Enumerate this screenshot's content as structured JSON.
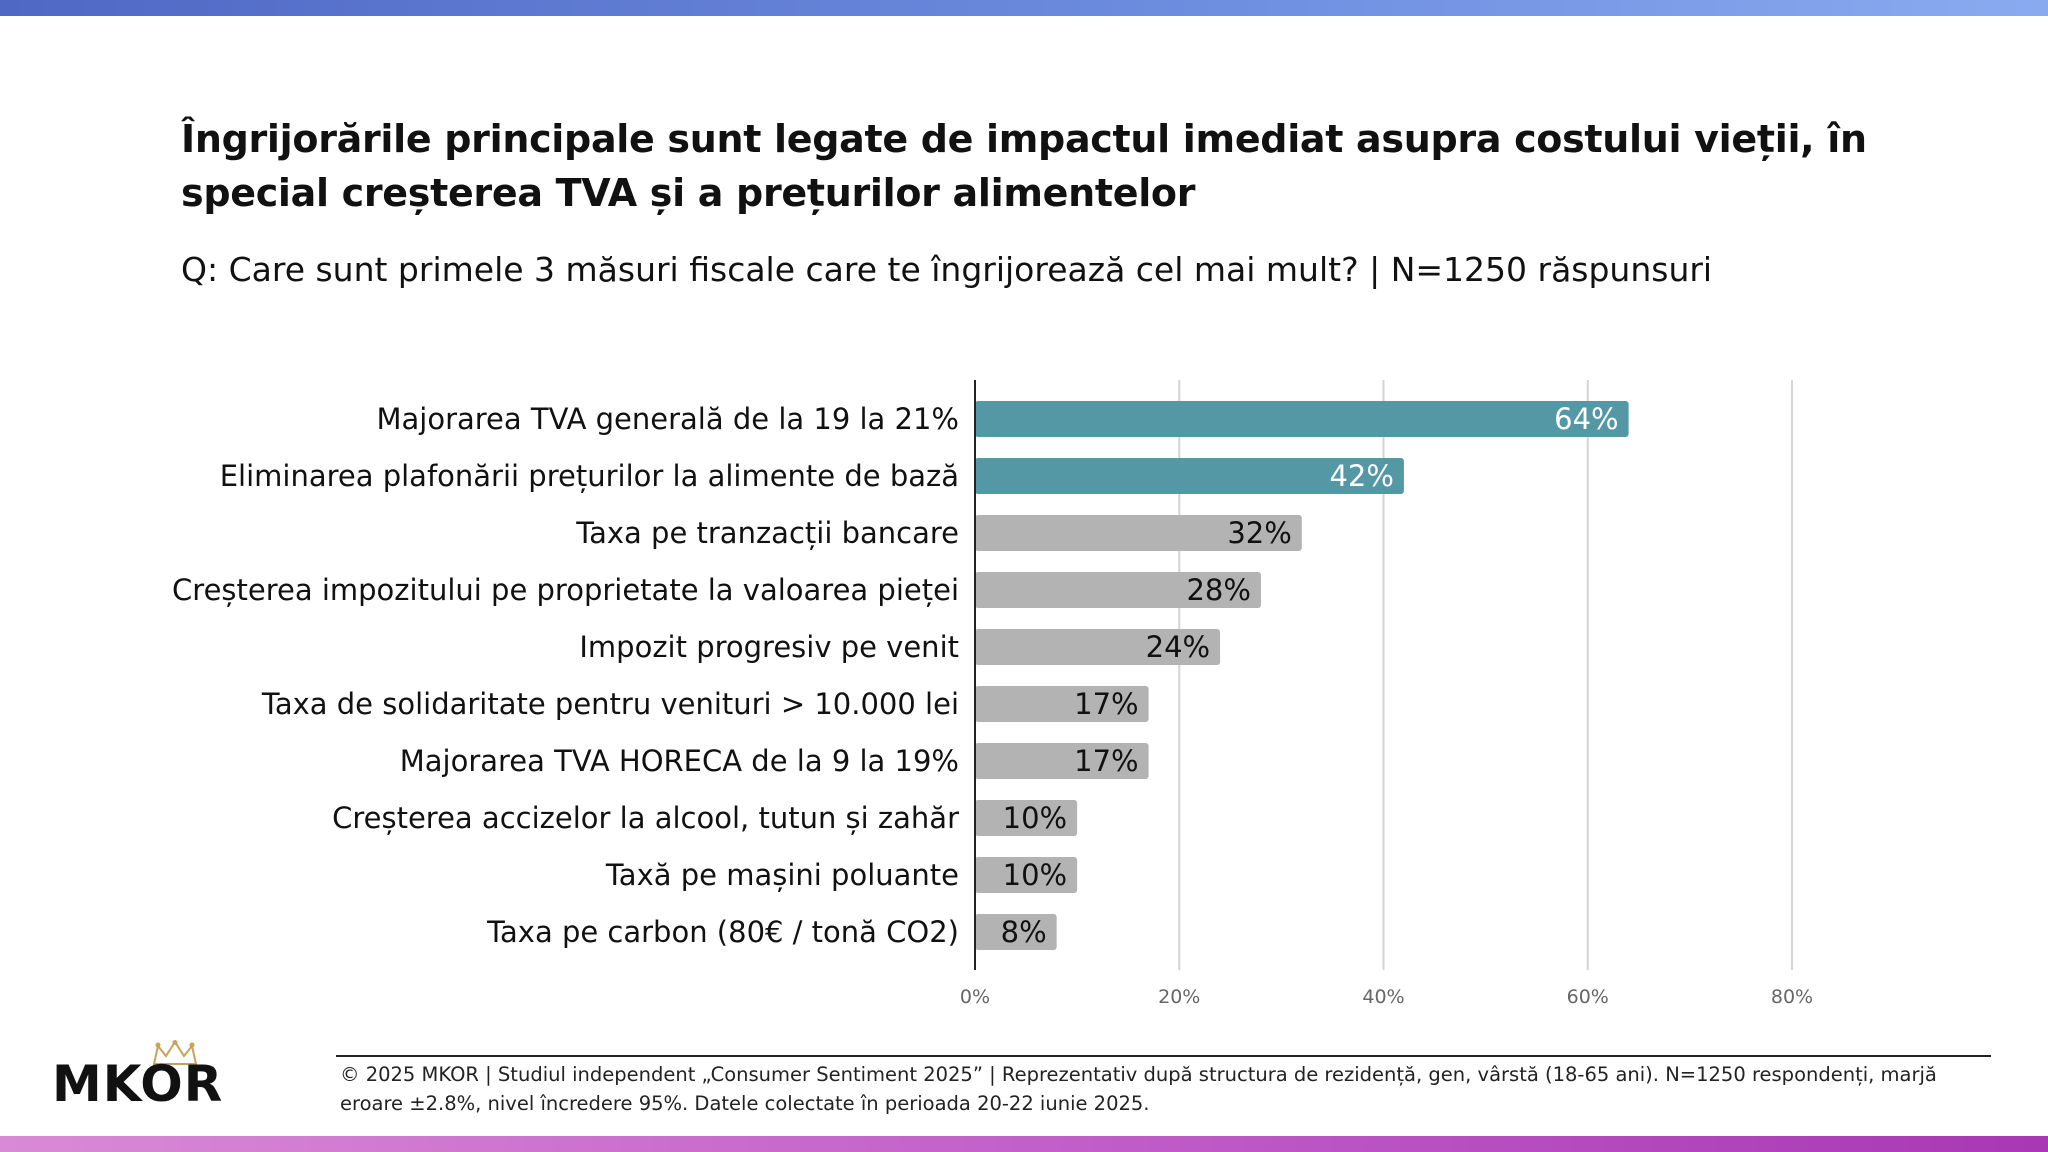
{
  "header": {
    "title": "Îngrijorările principale sunt legate de impactul imediat asupra costului vieții, în special creșterea TVA și a prețurilor alimentelor",
    "subtitle": "Q: Care sunt primele 3 măsuri fiscale care te îngrijorează cel mai mult? | N=1250 răspunsuri"
  },
  "colors": {
    "highlight_bar": "#5498a5",
    "default_bar": "#b3b3b3",
    "grid": "#d4d4d4",
    "axis": "#222222"
  },
  "chart_data": {
    "type": "bar",
    "orientation": "horizontal",
    "categories": [
      "Majorarea TVA generală de la 19 la 21%",
      "Eliminarea plafonării prețurilor la alimente de bază",
      "Taxa pe tranzacții bancare",
      "Creșterea impozitului pe proprietate la valoarea pieței",
      "Impozit progresiv pe venit",
      "Taxa de solidaritate pentru venituri > 10.000 lei",
      "Majorarea TVA HORECA de la 9 la 19%",
      "Creșterea accizelor la alcool, tutun și zahăr",
      "Taxă pe mașini poluante",
      "Taxa pe carbon (80€ / tonă CO2)"
    ],
    "values": [
      64,
      42,
      32,
      28,
      24,
      17,
      17,
      10,
      10,
      8
    ],
    "value_labels": [
      "64%",
      "42%",
      "32%",
      "28%",
      "24%",
      "17%",
      "17%",
      "10%",
      "10%",
      "8%"
    ],
    "highlighted": [
      true,
      true,
      false,
      false,
      false,
      false,
      false,
      false,
      false,
      false
    ],
    "xlim": [
      0,
      80
    ],
    "xticks": [
      0,
      20,
      40,
      60,
      80
    ],
    "xtick_labels": [
      "0%",
      "20%",
      "40%",
      "60%",
      "80%"
    ],
    "grid": true,
    "legend": "none"
  },
  "footer": {
    "text": "© 2025 MKOR | Studiul independent „Consumer Sentiment 2025” | Reprezentativ după structura de rezidență, gen, vârstă (18-65 ani). N=1250 respondenți, marjă eroare ±2.8%, nivel încredere 95%. Datele colectate în perioada 20-22 iunie 2025.",
    "logo": "MKOR"
  }
}
